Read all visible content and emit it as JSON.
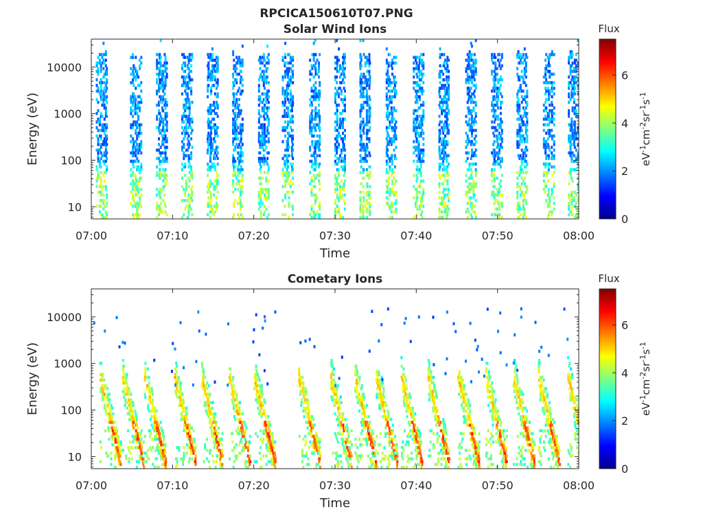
{
  "figure_title": "RPCICA150610T07.PNG",
  "chart_data": [
    {
      "type": "heatmap",
      "title": "Solar Wind Ions",
      "xlabel": "Time",
      "ylabel": "Energy (eV)",
      "y_scale": "log",
      "y_range_eV": [
        5.5,
        40000
      ],
      "x_range": [
        "07:00",
        "08:00"
      ],
      "x_ticks": [
        "07:00",
        "07:10",
        "07:20",
        "07:30",
        "07:40",
        "07:50",
        "08:00"
      ],
      "y_ticks": [
        10,
        100,
        1000,
        10000
      ],
      "y_tick_labels": [
        "10",
        "100",
        "1000",
        "10000"
      ],
      "colorbar": {
        "title": "Flux",
        "label_base": "eV",
        "label_sup1": "-1",
        "label_mid1": "cm",
        "label_sup2": "-2",
        "label_mid2": "sr",
        "label_sup3": "-1",
        "label_mid3": "s",
        "label_sup4": "-1",
        "range": [
          0,
          7.5
        ],
        "ticks": [
          0,
          2,
          4,
          6
        ],
        "tick_labels": [
          "0",
          "2",
          "4",
          "6"
        ],
        "colormap": "jet"
      },
      "bursts_min": [
        1.2,
        5.4,
        8.6,
        11.7,
        14.8,
        17.9,
        21.1,
        24.1,
        27.4,
        30.5,
        33.6,
        36.8,
        40.2,
        43.3,
        46.6,
        49.8,
        52.9,
        56.2,
        59.3
      ],
      "pattern": "periodic vertical stripes; high energies 100-20000 eV at flux ~1.5-3, low energies 6-60 eV at flux ~3-5"
    },
    {
      "type": "heatmap",
      "title": "Cometary Ions",
      "xlabel": "Time",
      "ylabel": "Energy (eV)",
      "y_scale": "log",
      "y_range_eV": [
        5.5,
        40000
      ],
      "x_range": [
        "07:00",
        "08:00"
      ],
      "x_ticks": [
        "07:00",
        "07:10",
        "07:20",
        "07:30",
        "07:40",
        "07:50",
        "08:00"
      ],
      "y_ticks": [
        10,
        100,
        1000,
        10000
      ],
      "y_tick_labels": [
        "10",
        "100",
        "1000",
        "10000"
      ],
      "colorbar": {
        "title": "Flux",
        "label_base": "eV",
        "label_sup1": "-1",
        "label_mid1": "cm",
        "label_sup2": "-2",
        "label_mid2": "sr",
        "label_sup3": "-1",
        "label_mid3": "s",
        "label_sup4": "-1",
        "range": [
          0,
          7.5
        ],
        "ticks": [
          0,
          2,
          4,
          6
        ],
        "tick_labels": [
          "0",
          "2",
          "4",
          "6"
        ],
        "colormap": "jet"
      },
      "bursts_min": [
        1.0,
        3.8,
        6.5,
        10.2,
        13.5,
        16.9,
        20.0,
        25.5,
        29.4,
        32.4,
        35.0,
        38.1,
        41.4,
        45.1,
        48.5,
        51.9,
        55.0,
        58.6
      ],
      "pattern": "sporadic dispersed features; energy decreasing with time from ~500 eV to ~6 eV, peak flux ~5-6.5 at 10-40 eV; sparse isolated points up to 15000 eV"
    }
  ]
}
